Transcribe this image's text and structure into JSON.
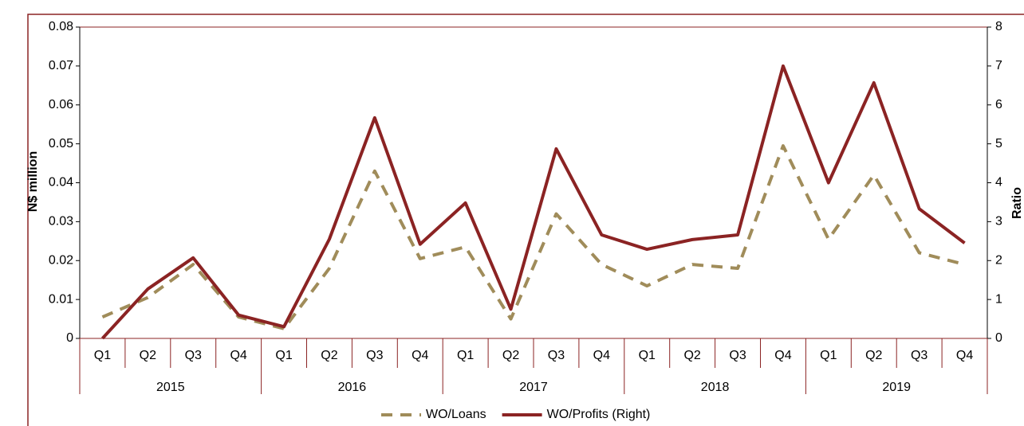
{
  "chart_data": {
    "type": "line",
    "categories": [
      "Q1",
      "Q2",
      "Q3",
      "Q4",
      "Q1",
      "Q2",
      "Q3",
      "Q4",
      "Q1",
      "Q2",
      "Q3",
      "Q4",
      "Q1",
      "Q2",
      "Q3",
      "Q4",
      "Q1",
      "Q2",
      "Q3",
      "Q4"
    ],
    "years": [
      "2015",
      "2016",
      "2017",
      "2018",
      "2019"
    ],
    "y_label": "N$ million",
    "y2_label": "Ratio",
    "ylim": [
      0,
      0.08
    ],
    "yticks": [
      0,
      0.01,
      0.02,
      0.03,
      0.04,
      0.05,
      0.06,
      0.07,
      0.08
    ],
    "y2lim": [
      0,
      8
    ],
    "y2ticks": [
      0,
      1,
      2,
      3,
      4,
      5,
      6,
      7,
      8
    ],
    "legend": "bottom",
    "series": [
      {
        "name": "WO/Loans",
        "color": "#a08c5a",
        "dash": true,
        "values": [
          0.0055,
          0.0105,
          0.019,
          0.0055,
          0.0025,
          0.018,
          0.043,
          0.0205,
          0.0235,
          0.005,
          0.032,
          0.019,
          0.0135,
          0.019,
          0.018,
          0.0495,
          0.0255,
          0.042,
          0.022,
          0.019
        ]
      },
      {
        "name": "WO/Profits (Right)",
        "color": "#8b2323",
        "axis": "y2",
        "dash": false,
        "values": [
          0,
          1.27,
          2.07,
          0.6,
          0.3,
          2.55,
          5.67,
          2.42,
          3.48,
          0.75,
          4.87,
          2.66,
          2.29,
          2.54,
          2.66,
          7.0,
          4.0,
          6.57,
          3.33,
          2.45
        ]
      }
    ]
  }
}
